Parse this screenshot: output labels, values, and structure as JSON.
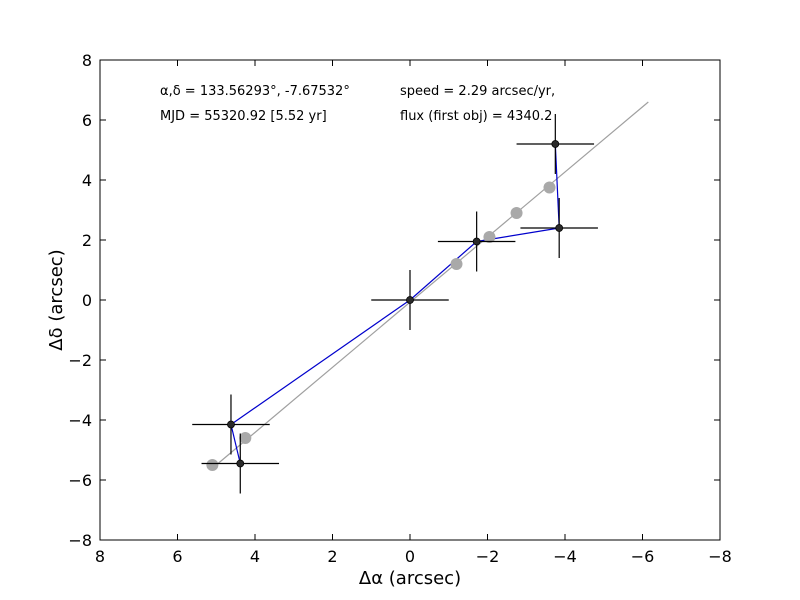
{
  "chart_data": {
    "type": "scatter",
    "xlabel": "Δα (arcsec)",
    "ylabel": "Δδ (arcsec)",
    "xlim": [
      8,
      -8
    ],
    "ylim": [
      -8,
      8
    ],
    "x_ticks": [
      "8",
      "6",
      "4",
      "2",
      "0",
      "−2",
      "−4",
      "−6",
      "−8"
    ],
    "y_ticks": [
      "8",
      "6",
      "4",
      "2",
      "0",
      "−2",
      "−4",
      "−6",
      "−8"
    ],
    "grid": false,
    "annotations": {
      "coords": "α,δ = 133.56293°, -7.67532°",
      "speed": "speed = 2.29 arcsec/yr,",
      "mjd": "MJD = 55320.92 [5.52 yr]",
      "flux": "flux (first obj) = 4340.2"
    },
    "fit_line": {
      "x": [
        5.0,
        -6.15
      ],
      "y": [
        -5.5,
        6.6
      ],
      "color": "#a0a0a0"
    },
    "observed": {
      "points": [
        {
          "x": 4.62,
          "y": -4.15,
          "xerr": 1.0,
          "yerr": 1.0
        },
        {
          "x": 4.38,
          "y": -5.45,
          "xerr": 1.0,
          "yerr": 1.0
        },
        {
          "x": 0.0,
          "y": 0.0,
          "xerr": 1.0,
          "yerr": 1.0
        },
        {
          "x": -1.72,
          "y": 1.95,
          "xerr": 1.0,
          "yerr": 1.0
        },
        {
          "x": -3.75,
          "y": 5.2,
          "xerr": 1.0,
          "yerr": 1.0
        },
        {
          "x": -3.85,
          "y": 2.4,
          "xerr": 1.0,
          "yerr": 1.0
        }
      ],
      "marker_color": "#2a2a2a",
      "errorbar_color": "#000000"
    },
    "predicted": {
      "points": [
        {
          "x": 5.1,
          "y": -5.5
        },
        {
          "x": 4.25,
          "y": -4.6
        },
        {
          "x": -1.2,
          "y": 1.2
        },
        {
          "x": -2.05,
          "y": 2.1
        },
        {
          "x": -2.75,
          "y": 2.9
        },
        {
          "x": -3.6,
          "y": 3.75
        }
      ],
      "marker_color": "#a9a9a9"
    },
    "connector_color": "#0000cc",
    "connectors": [
      {
        "from": [
          4.38,
          -5.45
        ],
        "to": [
          4.62,
          -4.15
        ]
      },
      {
        "from": [
          4.62,
          -4.15
        ],
        "to": [
          0.0,
          0.0
        ]
      },
      {
        "from": [
          0.0,
          0.0
        ],
        "to": [
          -1.72,
          1.95
        ]
      },
      {
        "from": [
          -1.72,
          1.95
        ],
        "to": [
          -3.85,
          2.4
        ]
      },
      {
        "from": [
          -3.85,
          2.4
        ],
        "to": [
          -3.75,
          5.2
        ]
      }
    ]
  }
}
